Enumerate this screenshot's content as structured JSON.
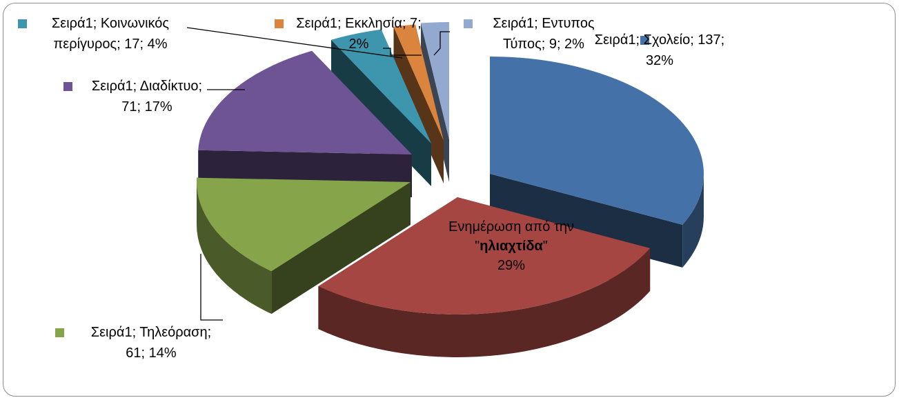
{
  "chart_data": {
    "type": "pie",
    "style": "exploded-3d",
    "series_name": "Σειρά1",
    "slices": [
      {
        "category": "Σχολείο",
        "value": 137,
        "percent": "32%",
        "color": "#4472a8",
        "label_lines": [
          "Σειρά1; Σχολείο; 137;",
          "32%"
        ],
        "legend_marker": true
      },
      {
        "category": "Ενημέρωση από την \"ηλιαχτίδα\"",
        "value": 124,
        "percent": "29%",
        "color": "#a64643",
        "label_lines": [
          "Ενημέρωση από την",
          "\"",
          "ηλιαχτίδα",
          "\"",
          "29%"
        ],
        "legend_marker": true
      },
      {
        "category": "Τηλεόραση",
        "value": 61,
        "percent": "14%",
        "color": "#86a44a",
        "label_lines": [
          "Σειρά1; Τηλεόραση;",
          "61; 14%"
        ],
        "legend_marker": true
      },
      {
        "category": "Διαδίκτυο",
        "value": 71,
        "percent": "17%",
        "color": "#6f5495",
        "label_lines": [
          "Σειρά1; Διαδίκτυο;",
          "71; 17%"
        ],
        "legend_marker": true
      },
      {
        "category": "Κοινωνικός περίγυρος",
        "value": 17,
        "percent": "4%",
        "color": "#3d96ae",
        "label_lines": [
          "Σειρά1; Κοινωνικός",
          "περίγυρος; 17; 4%"
        ],
        "legend_marker": true
      },
      {
        "category": "Εκκλησία",
        "value": 7,
        "percent": "2%",
        "color": "#db843d",
        "label_lines": [
          "Σειρά1; Εκκλησία; 7;",
          "2%"
        ],
        "legend_marker": true
      },
      {
        "category": "Εντυπος Τύπος",
        "value": 9,
        "percent": "2%",
        "color": "#93a9cf",
        "label_lines": [
          "Σειρά1; Εντυπος",
          "Τύπος; 9; 2%"
        ],
        "legend_marker": true
      }
    ]
  }
}
